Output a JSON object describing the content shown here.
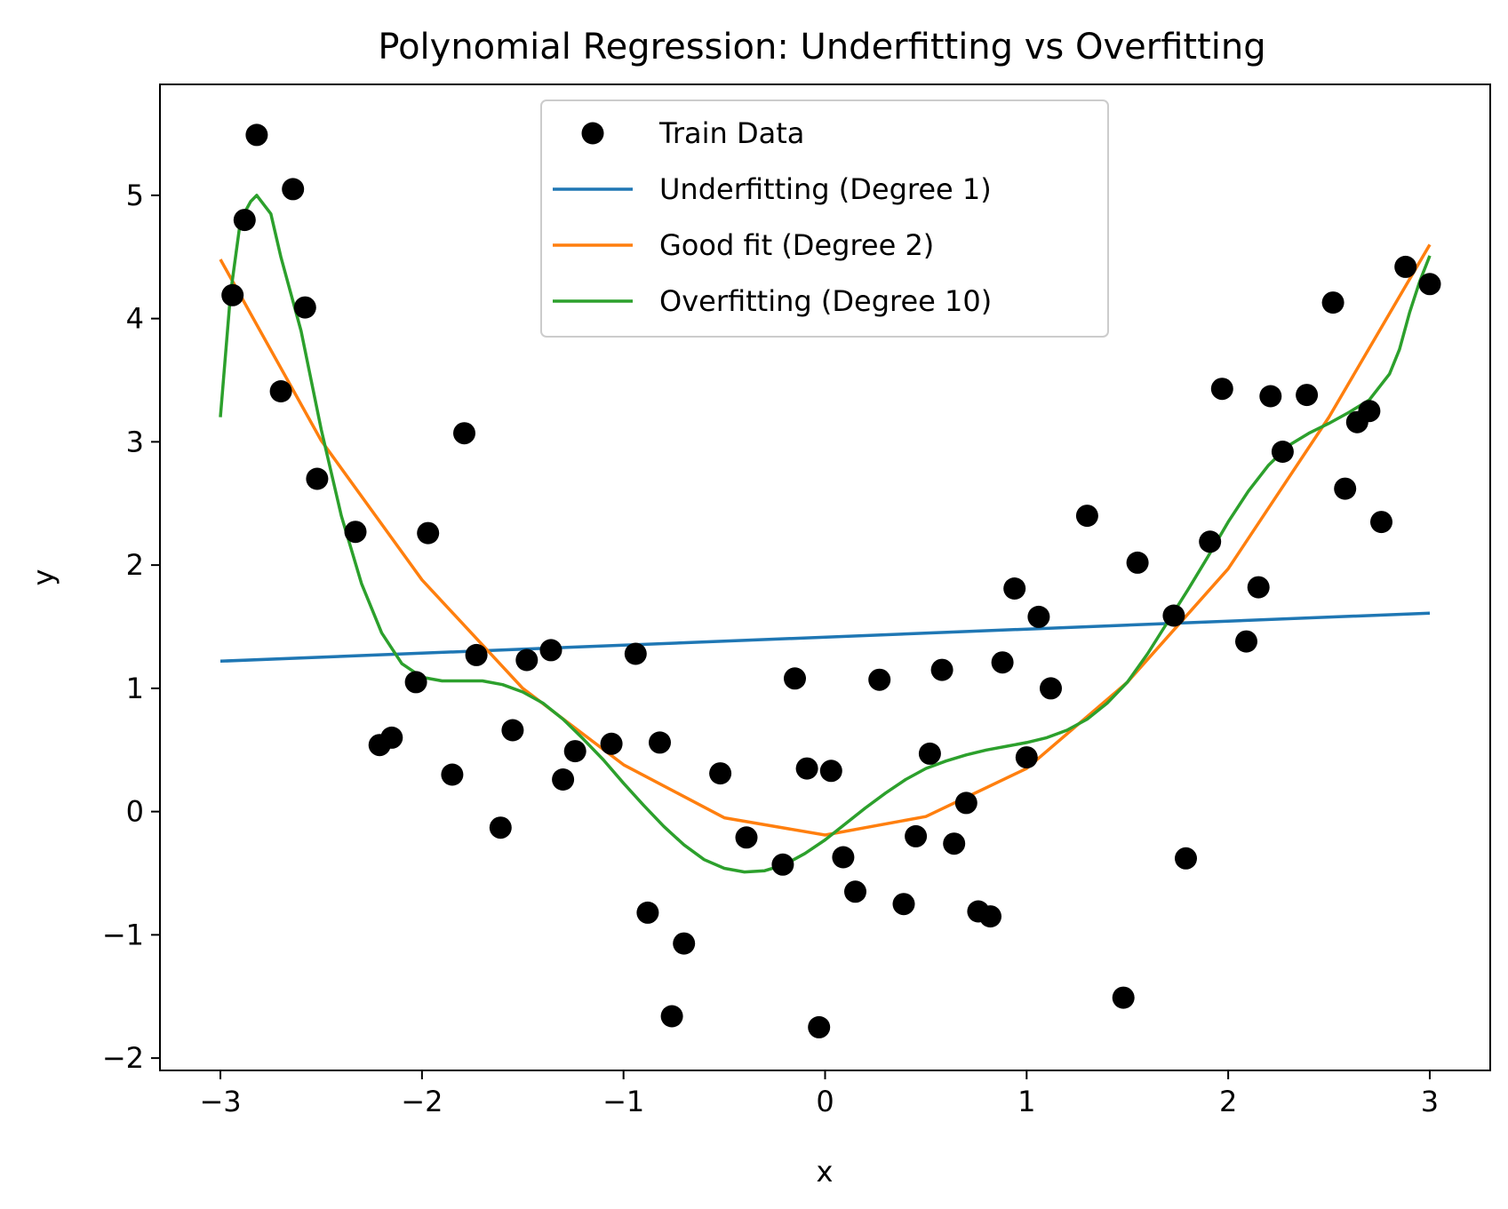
{
  "chart_data": {
    "type": "scatter",
    "title": "Polynomial Regression: Underfitting vs Overfitting",
    "xlabel": "x",
    "ylabel": "y",
    "xlim": [
      -3.3,
      3.3
    ],
    "ylim": [
      -2.1,
      5.9
    ],
    "xticks": [
      {
        "value": -3,
        "label": "−3"
      },
      {
        "value": -2,
        "label": "−2"
      },
      {
        "value": -1,
        "label": "−1"
      },
      {
        "value": 0,
        "label": "0"
      },
      {
        "value": 1,
        "label": "1"
      },
      {
        "value": 2,
        "label": "2"
      },
      {
        "value": 3,
        "label": "3"
      }
    ],
    "yticks": [
      {
        "value": -2,
        "label": "−2"
      },
      {
        "value": -1,
        "label": "−1"
      },
      {
        "value": 0,
        "label": "0"
      },
      {
        "value": 1,
        "label": "1"
      },
      {
        "value": 2,
        "label": "2"
      },
      {
        "value": 3,
        "label": "3"
      },
      {
        "value": 4,
        "label": "4"
      },
      {
        "value": 5,
        "label": "5"
      }
    ],
    "grid": false,
    "legend_position": "top-center",
    "scatter": {
      "name": "Train Data",
      "color": "#000000",
      "points": [
        [
          -2.94,
          4.19
        ],
        [
          -2.88,
          4.8
        ],
        [
          -2.82,
          5.49
        ],
        [
          -2.7,
          3.41
        ],
        [
          -2.64,
          5.05
        ],
        [
          -2.58,
          4.09
        ],
        [
          -2.52,
          2.7
        ],
        [
          -2.33,
          2.27
        ],
        [
          -2.21,
          0.54
        ],
        [
          -2.15,
          0.6
        ],
        [
          -2.03,
          1.05
        ],
        [
          -1.97,
          2.26
        ],
        [
          -1.85,
          0.3
        ],
        [
          -1.79,
          3.07
        ],
        [
          -1.73,
          1.27
        ],
        [
          -1.61,
          -0.13
        ],
        [
          -1.55,
          0.66
        ],
        [
          -1.48,
          1.23
        ],
        [
          -1.36,
          1.31
        ],
        [
          -1.3,
          0.26
        ],
        [
          -1.24,
          0.49
        ],
        [
          -1.06,
          0.55
        ],
        [
          -0.94,
          1.28
        ],
        [
          -0.88,
          -0.82
        ],
        [
          -0.82,
          0.56
        ],
        [
          -0.76,
          -1.66
        ],
        [
          -0.7,
          -1.07
        ],
        [
          -0.52,
          0.31
        ],
        [
          -0.39,
          -0.21
        ],
        [
          -0.21,
          -0.43
        ],
        [
          -0.15,
          1.08
        ],
        [
          -0.09,
          0.35
        ],
        [
          -0.03,
          -1.75
        ],
        [
          0.03,
          0.33
        ],
        [
          0.09,
          -0.37
        ],
        [
          0.15,
          -0.65
        ],
        [
          0.27,
          1.07
        ],
        [
          0.39,
          -0.75
        ],
        [
          0.45,
          -0.2
        ],
        [
          0.52,
          0.47
        ],
        [
          0.58,
          1.15
        ],
        [
          0.64,
          -0.26
        ],
        [
          0.7,
          0.07
        ],
        [
          0.76,
          -0.81
        ],
        [
          0.82,
          -0.85
        ],
        [
          0.88,
          1.21
        ],
        [
          0.94,
          1.81
        ],
        [
          1.0,
          0.44
        ],
        [
          1.06,
          1.58
        ],
        [
          1.12,
          1.0
        ],
        [
          1.3,
          2.4
        ],
        [
          1.48,
          -1.51
        ],
        [
          1.55,
          2.02
        ],
        [
          1.73,
          1.59
        ],
        [
          1.79,
          -0.38
        ],
        [
          1.91,
          2.19
        ],
        [
          1.97,
          3.43
        ],
        [
          2.09,
          1.38
        ],
        [
          2.15,
          1.82
        ],
        [
          2.21,
          3.37
        ],
        [
          2.27,
          2.92
        ],
        [
          2.39,
          3.38
        ],
        [
          2.52,
          4.13
        ],
        [
          2.58,
          2.62
        ],
        [
          2.64,
          3.16
        ],
        [
          2.7,
          3.25
        ],
        [
          2.76,
          2.35
        ],
        [
          2.88,
          4.42
        ],
        [
          3.0,
          4.28
        ]
      ]
    },
    "series": [
      {
        "name": "Underfitting (Degree 1)",
        "color": "#1f77b4",
        "x": [
          -3,
          3
        ],
        "y": [
          1.22,
          1.61
        ]
      },
      {
        "name": "Good fit (Degree 2)",
        "color": "#ff7f0e",
        "x": [
          -3.0,
          -2.5,
          -2.0,
          -1.5,
          -1.0,
          -0.5,
          0.0,
          0.5,
          1.0,
          1.5,
          2.0,
          2.5,
          3.0
        ],
        "y": [
          4.48,
          3.01,
          1.88,
          1.0,
          0.38,
          -0.05,
          -0.19,
          -0.04,
          0.35,
          1.05,
          1.97,
          3.2,
          4.6
        ]
      },
      {
        "name": "Overfitting (Degree 10)",
        "color": "#2ca02c",
        "x": [
          -3.0,
          -2.95,
          -2.9,
          -2.85,
          -2.82,
          -2.75,
          -2.7,
          -2.6,
          -2.5,
          -2.4,
          -2.3,
          -2.2,
          -2.1,
          -2.0,
          -1.9,
          -1.8,
          -1.7,
          -1.6,
          -1.5,
          -1.4,
          -1.3,
          -1.2,
          -1.1,
          -1.0,
          -0.9,
          -0.8,
          -0.7,
          -0.6,
          -0.5,
          -0.4,
          -0.3,
          -0.2,
          -0.1,
          0.0,
          0.1,
          0.2,
          0.3,
          0.4,
          0.5,
          0.6,
          0.7,
          0.8,
          0.9,
          1.0,
          1.1,
          1.2,
          1.3,
          1.4,
          1.5,
          1.6,
          1.7,
          1.8,
          1.9,
          2.0,
          2.1,
          2.2,
          2.3,
          2.4,
          2.5,
          2.6,
          2.7,
          2.8,
          2.85,
          2.9,
          2.95,
          3.0
        ],
        "y": [
          3.2,
          4.2,
          4.8,
          4.95,
          5.0,
          4.85,
          4.5,
          3.9,
          3.1,
          2.4,
          1.85,
          1.45,
          1.2,
          1.09,
          1.06,
          1.06,
          1.06,
          1.03,
          0.97,
          0.88,
          0.75,
          0.59,
          0.42,
          0.23,
          0.05,
          -0.12,
          -0.27,
          -0.39,
          -0.46,
          -0.49,
          -0.48,
          -0.43,
          -0.34,
          -0.23,
          -0.1,
          0.03,
          0.15,
          0.26,
          0.35,
          0.41,
          0.46,
          0.5,
          0.53,
          0.56,
          0.6,
          0.66,
          0.75,
          0.88,
          1.05,
          1.28,
          1.54,
          1.8,
          2.07,
          2.35,
          2.6,
          2.81,
          2.97,
          3.07,
          3.15,
          3.24,
          3.34,
          3.55,
          3.75,
          4.05,
          4.3,
          4.51
        ]
      }
    ]
  }
}
